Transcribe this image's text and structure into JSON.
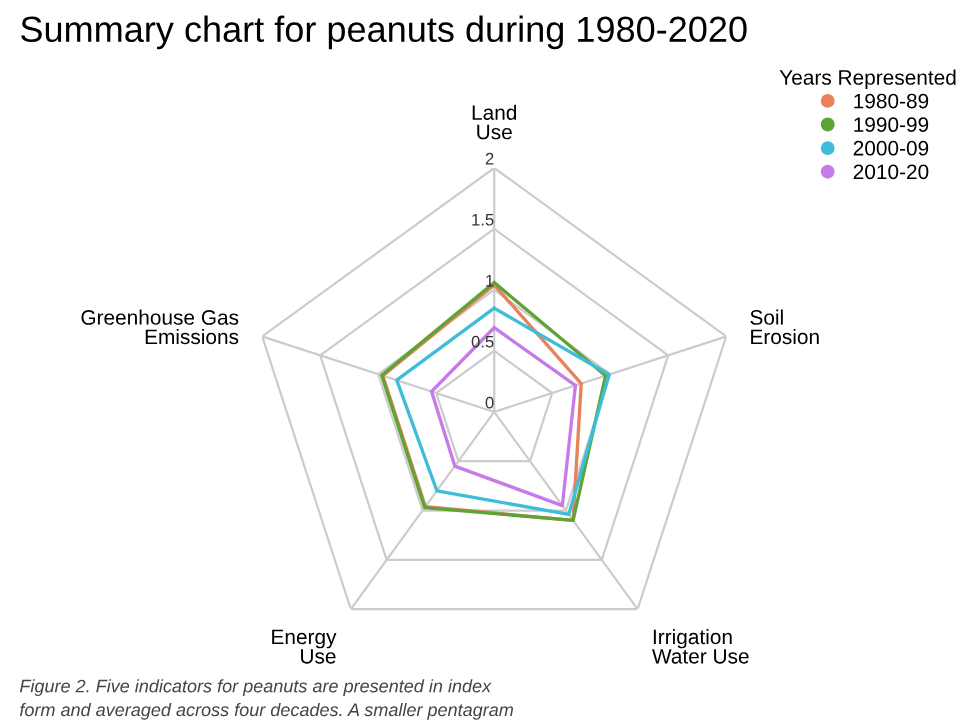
{
  "chart_data": {
    "type": "radar",
    "title": "Summary chart for peanuts during 1980-2020",
    "categories": [
      "Land\nUse",
      "Soil\nErosion",
      "Irrigation\nWater Use",
      "Energy\nUse",
      "Greenhouse Gas\nEmissions"
    ],
    "series": [
      {
        "name": "1980-89",
        "color": "#e8825a",
        "values": [
          1.04,
          0.75,
          1.1,
          0.96,
          0.96
        ]
      },
      {
        "name": "1990-99",
        "color": "#5fa336",
        "values": [
          1.06,
          0.96,
          1.1,
          0.97,
          0.97
        ]
      },
      {
        "name": "2000-09",
        "color": "#3fbcd8",
        "values": [
          0.85,
          0.99,
          1.04,
          0.8,
          0.84
        ]
      },
      {
        "name": "2010-20",
        "color": "#c77be8",
        "values": [
          0.69,
          0.7,
          0.95,
          0.55,
          0.54
        ]
      }
    ],
    "ylim": [
      0,
      2
    ],
    "yticks": [
      0,
      0.5,
      1,
      1.5,
      2
    ],
    "grid": true,
    "legend": "top right",
    "legend_title": "Years Represented",
    "annotations": [
      "Figure 2. Five indicators for peanuts are presented in index",
      "form and averaged across four decades. A smaller pentagram"
    ]
  }
}
